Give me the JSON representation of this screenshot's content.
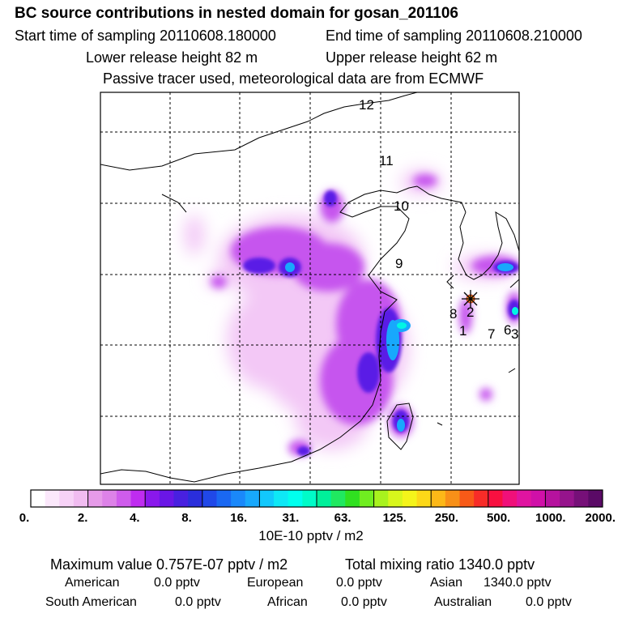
{
  "header": {
    "title": "BC  source contributions in nested domain for gosan_201106",
    "start_label": "Start time of sampling 20110608.180000",
    "end_label": "End time of sampling 20110608.210000",
    "lower_label": "Lower release height   82 m",
    "upper_label": "Upper release height   62 m",
    "note": "Passive tracer used, meteorological data are from ECMWF"
  },
  "map": {
    "receptor_icon": "asterisk-star-icon",
    "region_labels": [
      "12",
      "11",
      "10",
      "9",
      "8",
      "2",
      "1",
      "7",
      "6",
      "3"
    ]
  },
  "colorbar": {
    "unit": "10E-10 pptv / m2",
    "tick_labels": [
      "0.",
      "2.",
      "4.",
      "8.",
      "16.",
      "31.",
      "63.",
      "125.",
      "250.",
      "500.",
      "1000.",
      "2000."
    ],
    "colors": [
      "#ffffff",
      "#fbe8fb",
      "#f7d2f7",
      "#f1bcf1",
      "#e69be9",
      "#dd82e8",
      "#cf5cec",
      "#bf2cf0",
      "#8a18ec",
      "#6a16e6",
      "#4820e0",
      "#2a2edc",
      "#2048e8",
      "#1a68f2",
      "#1a88fa",
      "#18a8fc",
      "#12c8fc",
      "#0ee8f6",
      "#00ffee",
      "#00fcc8",
      "#00f09a",
      "#20e860",
      "#30e020",
      "#70ee20",
      "#a8f21e",
      "#d8f61c",
      "#f4f41a",
      "#fcd818",
      "#fcb818",
      "#f89018",
      "#f85a18",
      "#f82c28",
      "#f81040",
      "#f0107a",
      "#e014a0",
      "#d010a8",
      "#b6129e",
      "#96148c",
      "#761078",
      "#5a0a66"
    ]
  },
  "stats": {
    "max_label": "Maximum value  0.757E-07 pptv / m2",
    "total_label": "Total mixing ratio     1340.0 pptv",
    "american_label": "American",
    "american_value": "0.0 pptv",
    "european_label": "European",
    "european_value": "0.0 pptv",
    "asian_label": "Asian",
    "asian_value": "1340.0 pptv",
    "south_american_label": "South American",
    "south_american_value": "0.0 pptv",
    "african_label": "African",
    "african_value": "0.0 pptv",
    "australian_label": "Australian",
    "australian_value": "0.0 pptv"
  }
}
